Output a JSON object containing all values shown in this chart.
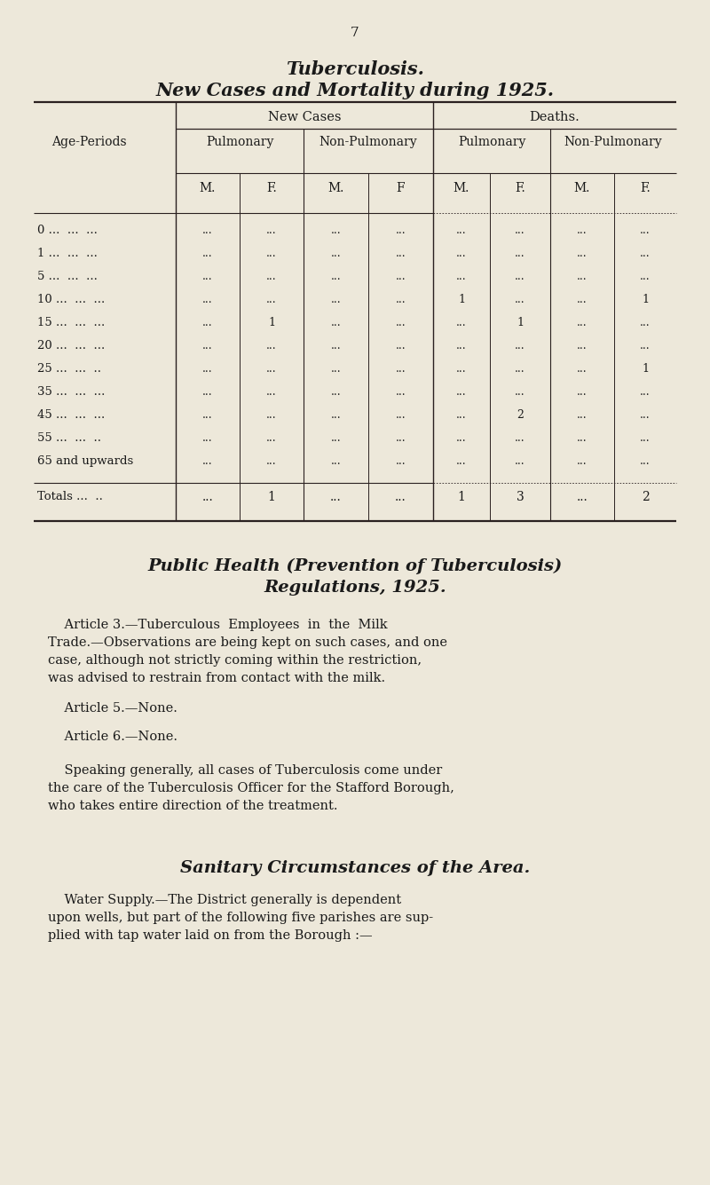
{
  "bg_color": "#ede8da",
  "text_color": "#1a1a1a",
  "page_number": "7",
  "title1": "Tuberculosis.",
  "title2": "New Cases and Mortality during 1925.",
  "header_new_cases": "New Cases",
  "header_deaths": "Deaths.",
  "age_rows": [
    {
      "age": "0",
      "age_dots": " ...  ...  ...",
      "vals": [
        "...",
        "...",
        "...",
        "...",
        "...",
        "...",
        "...",
        "..."
      ]
    },
    {
      "age": "1",
      "age_dots": " ...  ...  ...",
      "vals": [
        "...",
        "...",
        "...",
        "...",
        "...",
        "...",
        "...",
        "..."
      ]
    },
    {
      "age": "5",
      "age_dots": " ...  ...  ...",
      "vals": [
        "...",
        "...",
        "...",
        "...",
        "...",
        "...",
        "...",
        "..."
      ]
    },
    {
      "age": "10",
      "age_dots": " ...  ...  ...",
      "vals": [
        "...",
        "...",
        "...",
        "...",
        "1",
        "...",
        "...",
        "1"
      ]
    },
    {
      "age": "15",
      "age_dots": " ...  ...  ...",
      "vals": [
        "...",
        "1",
        "...",
        "...",
        "...",
        "1",
        "...",
        "..."
      ]
    },
    {
      "age": "20",
      "age_dots": " ...  ...  ...",
      "vals": [
        "...",
        "...",
        "...",
        "...",
        "...",
        "...",
        "...",
        "..."
      ]
    },
    {
      "age": "25",
      "age_dots": " ...  ...  ..",
      "vals": [
        "...",
        "...",
        "...",
        "...",
        "...",
        "...",
        "...",
        "1"
      ]
    },
    {
      "age": "35",
      "age_dots": " ...  ...  ...",
      "vals": [
        "...",
        "...",
        "...",
        "...",
        "...",
        "...",
        "...",
        "..."
      ]
    },
    {
      "age": "45",
      "age_dots": " ...  ...  ...",
      "vals": [
        "...",
        "...",
        "...",
        "...",
        "...",
        "2",
        "...",
        "..."
      ]
    },
    {
      "age": "55",
      "age_dots": " ...  ...  ..",
      "vals": [
        "...",
        "...",
        "...",
        "...",
        "...",
        "...",
        "...",
        "..."
      ]
    },
    {
      "age": "65 and upwards",
      "age_dots": "",
      "vals": [
        "...",
        "...",
        "...",
        "...",
        "...",
        "...",
        "...",
        "..."
      ]
    }
  ],
  "totals_vals": [
    "...",
    "1",
    "...",
    "...",
    "1",
    "3",
    "...",
    "2"
  ],
  "section2_line1": "Public Health (Prevention of Tuberculosis)",
  "section2_line2": "Regulations, 1925.",
  "art3_lines": [
    "    Article 3.—Tuberculous  Employees  in  the  Milk",
    "Trade.—Observations are being kept on such cases, and one",
    "case, although not strictly coming within the restriction,",
    "was advised to restrain from contact with the milk."
  ],
  "art5_line": "    Article 5.—None.",
  "art6_line": "    Article 6.—None.",
  "para_lines": [
    "    Speaking generally, all cases of Tuberculosis come under",
    "the care of the Tuberculosis Officer for the Stafford Borough,",
    "who takes entire direction of the treatment."
  ],
  "section3_title": "Sanitary Circumstances of the Area.",
  "water_lines": [
    "    Water Supply.—The District generally is dependent",
    "upon wells, but part of the following five parishes are sup-",
    "plied with tap water laid on from the Borough :—"
  ]
}
